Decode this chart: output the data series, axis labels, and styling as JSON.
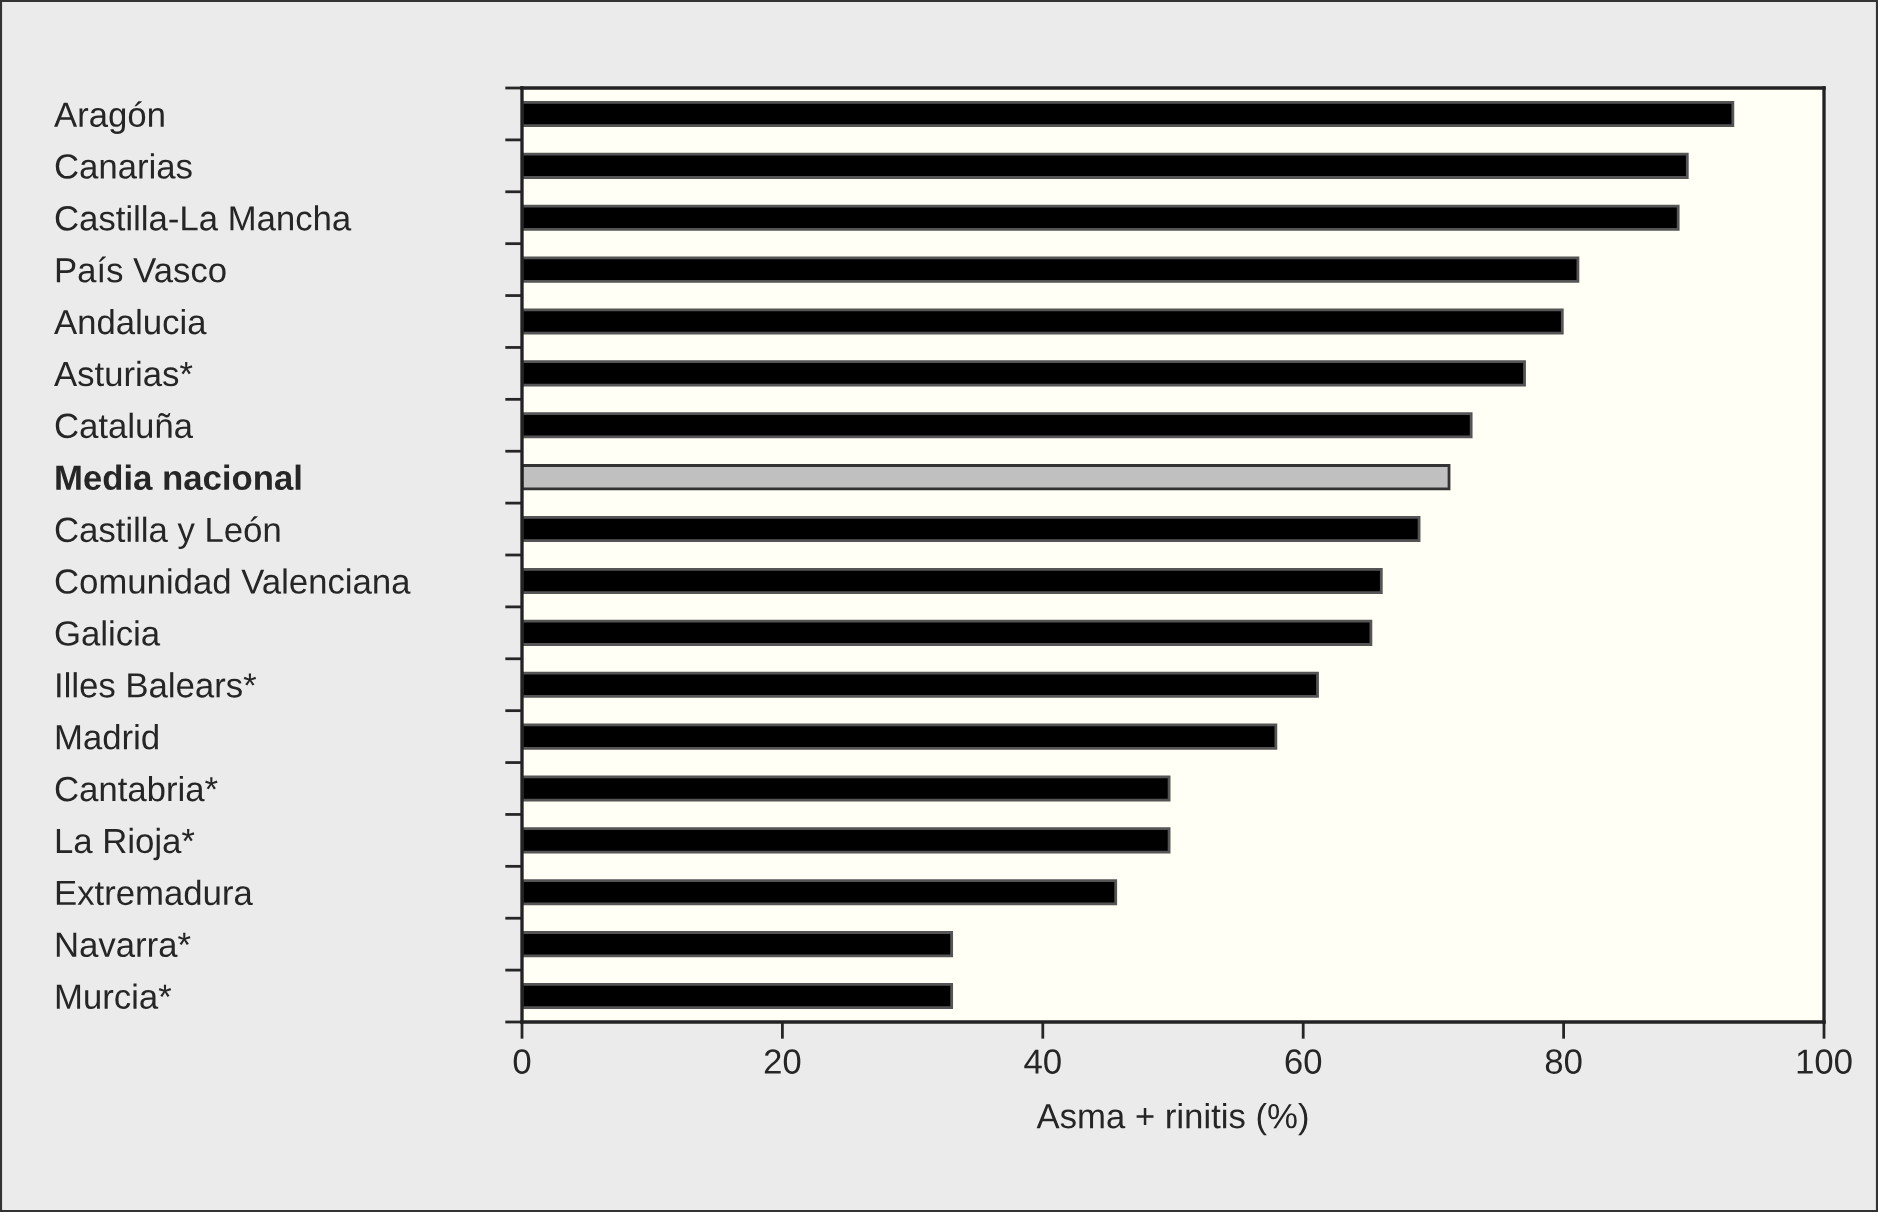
{
  "chart_data": {
    "type": "bar",
    "orientation": "horizontal",
    "xlabel": "Asma + rinitis (%)",
    "categories": [
      "Aragón",
      "Canarias",
      "Castilla-La Mancha",
      "País Vasco",
      "Andalucia",
      "Asturias*",
      "Cataluña",
      "Media nacional",
      "Castilla y León",
      "Comunidad Valenciana",
      "Galicia",
      "Illes Balears*",
      "Madrid",
      "Cantabria*",
      "La Rioja*",
      "Extremadura",
      "Navarra*",
      "Murcia*"
    ],
    "values": [
      93,
      89.5,
      88.8,
      81.1,
      79.9,
      77,
      72.9,
      71.2,
      68.9,
      66,
      65.2,
      61.1,
      57.9,
      49.7,
      49.7,
      45.6,
      33,
      33
    ],
    "colors": [
      "#000000",
      "#000000",
      "#000000",
      "#000000",
      "#000000",
      "#000000",
      "#000000",
      "#c0c0c0",
      "#000000",
      "#000000",
      "#000000",
      "#000000",
      "#000000",
      "#000000",
      "#000000",
      "#000000",
      "#000000",
      "#000000"
    ],
    "xlim": [
      0,
      100
    ],
    "xticks": [
      0,
      20,
      40,
      60,
      80,
      100
    ],
    "grid": false,
    "legend": false
  }
}
